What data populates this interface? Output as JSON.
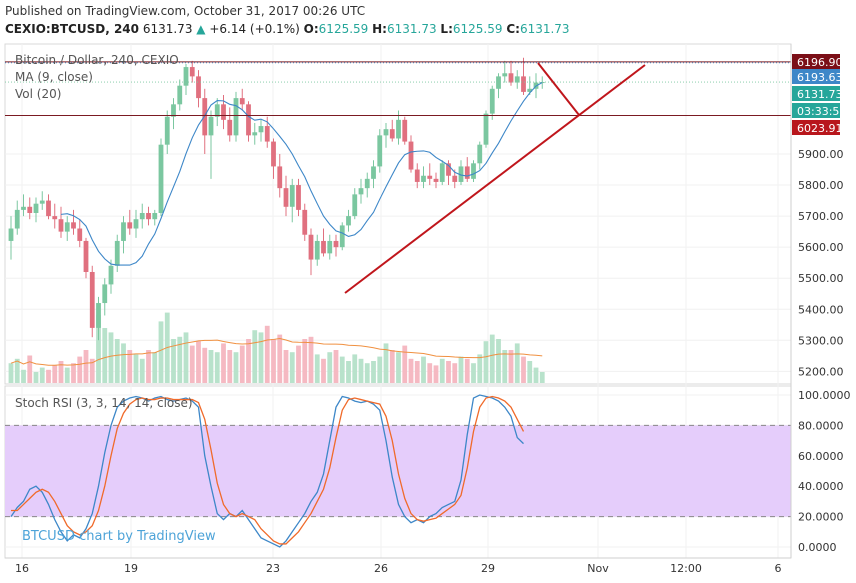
{
  "header": {
    "published": "Published on TradingView.com, October 31, 2017 00:26 UTC",
    "symbol": "CEXIO:BTCUSD, 240",
    "last": "6131.73",
    "change": "+6.14 (+0.1%)",
    "o_label": "O:",
    "o": "6125.59",
    "h_label": "H:",
    "h": "6131.73",
    "l_label": "L:",
    "l": "6125.59",
    "c_label": "C:",
    "c": "6131.73"
  },
  "legend": {
    "title": "Bitcoin / Dollar, 240, CEXIO",
    "ma": "MA (9, close)",
    "vol": "Vol (20)",
    "stoch": "Stoch RSI (3, 3, 14, 14, close)"
  },
  "watermark": "BTCUSD chart by TradingView",
  "colors": {
    "up": "#7bc7a0",
    "down": "#e0707f",
    "ma": "#3d87c8",
    "trend": "#c0161c",
    "stoch_k": "#3d87c8",
    "stoch_d": "#f06a2a",
    "stoch_band": "#e5cdfb"
  },
  "price_axis": {
    "ticks": [
      "5900.00",
      "5800.00",
      "5700.00",
      "5600.00",
      "5500.00",
      "5400.00",
      "5300.00",
      "5200.00"
    ],
    "badges": [
      {
        "text": "6196.90",
        "color": "#7b0f17"
      },
      {
        "text": "6193.63",
        "color": "#3d87c8"
      },
      {
        "text": "6131.73",
        "color": "#26a69a"
      },
      {
        "text": "03:33:52",
        "color": "#26a69a"
      },
      {
        "text": "6023.91",
        "color": "#b8161c"
      }
    ]
  },
  "stoch_axis": {
    "ticks": [
      "100.0000",
      "80.0000",
      "60.0000",
      "40.0000",
      "20.0000",
      "0.0000"
    ]
  },
  "time_axis": {
    "ticks": [
      "16",
      "19",
      "23",
      "26",
      "29",
      "Nov",
      "12:00",
      "6"
    ]
  },
  "chart_data": [
    {
      "type": "candlestick",
      "title": "Bitcoin / Dollar, 240, CEXIO",
      "ylim": [
        5160,
        6260
      ],
      "horizontal_levels": [
        6196.9,
        6023.91
      ],
      "ma_period": 9,
      "candles": [
        [
          5620,
          5700,
          5560,
          5660
        ],
        [
          5660,
          5750,
          5640,
          5720
        ],
        [
          5720,
          5770,
          5700,
          5730
        ],
        [
          5730,
          5760,
          5690,
          5710
        ],
        [
          5710,
          5760,
          5680,
          5740
        ],
        [
          5740,
          5780,
          5720,
          5750
        ],
        [
          5750,
          5770,
          5690,
          5700
        ],
        [
          5700,
          5740,
          5660,
          5690
        ],
        [
          5690,
          5730,
          5630,
          5650
        ],
        [
          5650,
          5700,
          5620,
          5680
        ],
        [
          5680,
          5720,
          5640,
          5660
        ],
        [
          5660,
          5690,
          5600,
          5620
        ],
        [
          5620,
          5630,
          5500,
          5520
        ],
        [
          5520,
          5540,
          5310,
          5340
        ],
        [
          5340,
          5440,
          5300,
          5420
        ],
        [
          5420,
          5500,
          5380,
          5480
        ],
        [
          5480,
          5560,
          5450,
          5540
        ],
        [
          5540,
          5640,
          5520,
          5620
        ],
        [
          5620,
          5700,
          5580,
          5680
        ],
        [
          5680,
          5720,
          5640,
          5660
        ],
        [
          5660,
          5720,
          5630,
          5690
        ],
        [
          5690,
          5740,
          5660,
          5710
        ],
        [
          5710,
          5730,
          5670,
          5690
        ],
        [
          5690,
          5720,
          5670,
          5710
        ],
        [
          5710,
          5950,
          5700,
          5930
        ],
        [
          5930,
          6040,
          5900,
          6020
        ],
        [
          6020,
          6080,
          5980,
          6060
        ],
        [
          6060,
          6140,
          6040,
          6120
        ],
        [
          6120,
          6190,
          6090,
          6180
        ],
        [
          6180,
          6200,
          6130,
          6150
        ],
        [
          6150,
          6170,
          6050,
          6080
        ],
        [
          6080,
          6110,
          5900,
          5960
        ],
        [
          5960,
          6040,
          5820,
          6020
        ],
        [
          6020,
          6080,
          5990,
          6060
        ],
        [
          6060,
          6090,
          5980,
          6010
        ],
        [
          6010,
          6050,
          5940,
          5960
        ],
        [
          5960,
          6100,
          5940,
          6080
        ],
        [
          6080,
          6110,
          6040,
          6060
        ],
        [
          6060,
          6070,
          5940,
          5960
        ],
        [
          5960,
          6000,
          5930,
          5970
        ],
        [
          5970,
          6010,
          5940,
          5990
        ],
        [
          5990,
          6020,
          5920,
          5940
        ],
        [
          5940,
          5950,
          5820,
          5860
        ],
        [
          5860,
          5900,
          5760,
          5790
        ],
        [
          5790,
          5830,
          5700,
          5730
        ],
        [
          5730,
          5820,
          5680,
          5800
        ],
        [
          5800,
          5820,
          5700,
          5720
        ],
        [
          5720,
          5740,
          5620,
          5640
        ],
        [
          5640,
          5660,
          5510,
          5560
        ],
        [
          5560,
          5640,
          5540,
          5620
        ],
        [
          5620,
          5660,
          5570,
          5580
        ],
        [
          5580,
          5640,
          5560,
          5620
        ],
        [
          5620,
          5640,
          5570,
          5600
        ],
        [
          5600,
          5680,
          5590,
          5670
        ],
        [
          5670,
          5720,
          5650,
          5700
        ],
        [
          5700,
          5790,
          5690,
          5770
        ],
        [
          5770,
          5820,
          5740,
          5790
        ],
        [
          5790,
          5840,
          5760,
          5820
        ],
        [
          5820,
          5880,
          5790,
          5860
        ],
        [
          5860,
          5980,
          5840,
          5960
        ],
        [
          5960,
          6000,
          5920,
          5980
        ],
        [
          5980,
          6010,
          5940,
          5950
        ],
        [
          5950,
          6040,
          5930,
          6010
        ],
        [
          6010,
          6020,
          5930,
          5940
        ],
        [
          5940,
          5960,
          5840,
          5850
        ],
        [
          5850,
          5870,
          5790,
          5810
        ],
        [
          5810,
          5860,
          5790,
          5830
        ],
        [
          5830,
          5870,
          5800,
          5820
        ],
        [
          5820,
          5840,
          5790,
          5810
        ],
        [
          5810,
          5880,
          5800,
          5870
        ],
        [
          5870,
          5880,
          5800,
          5830
        ],
        [
          5830,
          5850,
          5790,
          5810
        ],
        [
          5810,
          5880,
          5800,
          5860
        ],
        [
          5860,
          5890,
          5810,
          5820
        ],
        [
          5820,
          5880,
          5810,
          5870
        ],
        [
          5870,
          5940,
          5850,
          5930
        ],
        [
          5930,
          6040,
          5920,
          6030
        ],
        [
          6030,
          6120,
          6010,
          6110
        ],
        [
          6110,
          6160,
          6080,
          6150
        ],
        [
          6150,
          6200,
          6130,
          6160
        ],
        [
          6160,
          6200,
          6120,
          6130
        ],
        [
          6130,
          6170,
          6110,
          6150
        ],
        [
          6150,
          6210,
          6090,
          6100
        ],
        [
          6100,
          6150,
          6090,
          6110
        ],
        [
          6110,
          6160,
          6080,
          6130
        ],
        [
          6130,
          6150,
          6110,
          6131.73
        ]
      ],
      "volume": [
        18,
        22,
        12,
        25,
        10,
        14,
        12,
        16,
        20,
        14,
        18,
        24,
        30,
        22,
        62,
        50,
        46,
        40,
        36,
        30,
        26,
        22,
        30,
        28,
        56,
        64,
        40,
        42,
        46,
        34,
        38,
        32,
        30,
        28,
        36,
        30,
        28,
        34,
        40,
        48,
        46,
        52,
        40,
        44,
        30,
        28,
        34,
        40,
        42,
        26,
        22,
        28,
        30,
        24,
        20,
        26,
        22,
        18,
        20,
        24,
        36,
        30,
        28,
        34,
        22,
        20,
        24,
        18,
        16,
        22,
        20,
        18,
        24,
        22,
        18,
        26,
        38,
        44,
        40,
        30,
        30,
        36,
        24,
        20,
        14,
        10
      ],
      "volume_ma_period": 20
    },
    {
      "type": "line",
      "title": "Stoch RSI (3, 3, 14, 14, close)",
      "ylim": [
        0,
        100
      ],
      "band": [
        20,
        80
      ],
      "series": [
        {
          "name": "K",
          "values": [
            20,
            26,
            30,
            38,
            40,
            36,
            28,
            18,
            10,
            4,
            8,
            6,
            12,
            22,
            40,
            62,
            80,
            92,
            96,
            98,
            99,
            98,
            96,
            98,
            99,
            97,
            96,
            97,
            98,
            96,
            92,
            60,
            40,
            22,
            18,
            22,
            20,
            24,
            18,
            12,
            6,
            4,
            2,
            0,
            4,
            10,
            16,
            22,
            30,
            36,
            48,
            70,
            92,
            99,
            98,
            96,
            95,
            96,
            94,
            90,
            70,
            46,
            28,
            20,
            16,
            18,
            16,
            20,
            22,
            26,
            28,
            30,
            44,
            74,
            98,
            100,
            99,
            98,
            96,
            92,
            86,
            72,
            68
          ]
        },
        {
          "name": "D",
          "values": [
            24,
            24,
            28,
            32,
            36,
            38,
            36,
            30,
            22,
            14,
            10,
            8,
            10,
            14,
            24,
            40,
            60,
            78,
            88,
            94,
            97,
            98,
            97,
            97,
            98,
            98,
            97,
            97,
            97,
            97,
            95,
            84,
            64,
            42,
            28,
            22,
            20,
            22,
            20,
            18,
            12,
            8,
            4,
            2,
            2,
            6,
            10,
            16,
            22,
            30,
            38,
            52,
            72,
            90,
            97,
            98,
            97,
            96,
            95,
            94,
            86,
            70,
            48,
            32,
            22,
            18,
            17,
            18,
            19,
            22,
            25,
            28,
            34,
            52,
            76,
            92,
            98,
            99,
            98,
            96,
            92,
            84,
            76
          ]
        }
      ]
    }
  ]
}
